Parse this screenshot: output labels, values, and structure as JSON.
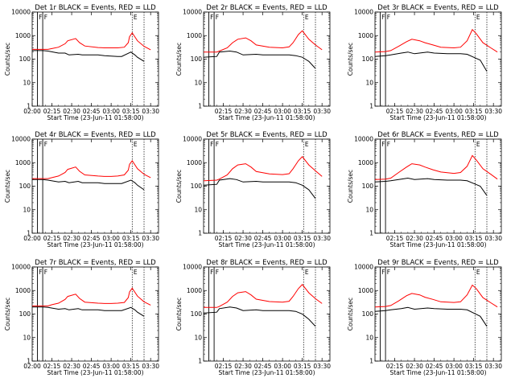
{
  "chart_data": [
    {
      "type": "line",
      "title": "Det 1r BLACK = Events, RED = LLD",
      "xlabel": "Start Time (23-Jun-11 01:58:00)",
      "ylabel": "Counts/sec",
      "yscale": "log",
      "ylim": [
        1,
        10000
      ],
      "x_ticks": [
        "02:00",
        "02:15",
        "02:30",
        "02:45",
        "03:00",
        "03:15",
        "03:30"
      ],
      "y_ticks": [
        "1",
        "10",
        "100",
        "1000",
        "10000"
      ],
      "markers": [
        "F",
        "F",
        "E"
      ],
      "series": [
        {
          "name": "Events",
          "color": "#000000",
          "x": [
            "02:00",
            "02:08",
            "02:12",
            "02:20",
            "02:25",
            "02:28",
            "02:35",
            "02:38",
            "02:50",
            "02:55",
            "03:05",
            "03:08",
            "03:15",
            "03:18",
            "03:20",
            "03:25"
          ],
          "y": [
            230,
            230,
            220,
            180,
            180,
            150,
            160,
            150,
            150,
            140,
            130,
            130,
            200,
            150,
            120,
            80
          ]
        },
        {
          "name": "LLD",
          "color": "#ff0000",
          "x": [
            "02:00",
            "02:08",
            "02:12",
            "02:15",
            "02:20",
            "02:25",
            "02:27",
            "02:33",
            "02:36",
            "02:40",
            "02:50",
            "02:55",
            "03:00",
            "03:05",
            "03:10",
            "03:13",
            "03:14",
            "03:16",
            "03:20",
            "03:25",
            "03:30"
          ],
          "y": [
            260,
            260,
            260,
            280,
            320,
            450,
            600,
            750,
            500,
            360,
            310,
            300,
            300,
            300,
            320,
            500,
            900,
            1300,
            600,
            350,
            250
          ]
        }
      ]
    },
    {
      "type": "line",
      "title": "Det 2r BLACK = Events, RED = LLD",
      "xlabel": "Start Time (23-Jun-11 01:58:00)",
      "ylabel": "Counts/sec",
      "yscale": "log",
      "ylim": [
        1,
        10000
      ],
      "x_ticks": [
        "02:15",
        "02:30",
        "02:45",
        "03:00",
        "03:15",
        "03:30"
      ],
      "y_ticks": [
        "1",
        "10",
        "100",
        "1000",
        "10000"
      ],
      "markers": [
        "F",
        "F",
        "E"
      ],
      "series": [
        {
          "name": "Events",
          "color": "#000000",
          "x": [
            "02:00",
            "02:10",
            "02:12",
            "02:20",
            "02:25",
            "02:30",
            "02:40",
            "02:45",
            "02:55",
            "03:05",
            "03:10",
            "03:15",
            "03:20",
            "03:25"
          ],
          "y": [
            120,
            130,
            200,
            220,
            200,
            150,
            160,
            150,
            150,
            150,
            140,
            120,
            80,
            40
          ]
        },
        {
          "name": "LLD",
          "color": "#ff0000",
          "x": [
            "02:00",
            "02:10",
            "02:12",
            "02:18",
            "02:22",
            "02:26",
            "02:32",
            "02:36",
            "02:40",
            "02:50",
            "03:00",
            "03:05",
            "03:08",
            "03:12",
            "03:15",
            "03:20",
            "03:25",
            "03:30"
          ],
          "y": [
            200,
            200,
            220,
            300,
            500,
            700,
            800,
            600,
            400,
            320,
            300,
            330,
            500,
            1100,
            1600,
            700,
            400,
            250
          ]
        }
      ]
    },
    {
      "type": "line",
      "title": "Det 3r BLACK = Events, RED = LLD",
      "xlabel": "Start Time (23-Jun-11 01:58:00)",
      "ylabel": "Counts/sec",
      "yscale": "log",
      "ylim": [
        1,
        10000
      ],
      "x_ticks": [
        "02:15",
        "02:30",
        "02:45",
        "03:00",
        "03:15",
        "03:30"
      ],
      "y_ticks": [
        "1",
        "10",
        "100",
        "1000",
        "10000"
      ],
      "markers": [
        "F",
        "F",
        "E"
      ],
      "series": [
        {
          "name": "Events",
          "color": "#000000",
          "x": [
            "02:00",
            "02:08",
            "02:12",
            "02:20",
            "02:25",
            "02:30",
            "02:40",
            "02:45",
            "02:55",
            "03:05",
            "03:10",
            "03:15",
            "03:20",
            "03:25"
          ],
          "y": [
            130,
            140,
            150,
            180,
            200,
            170,
            200,
            180,
            170,
            170,
            160,
            120,
            90,
            30
          ]
        },
        {
          "name": "LLD",
          "color": "#ff0000",
          "x": [
            "02:00",
            "02:08",
            "02:12",
            "02:18",
            "02:24",
            "02:28",
            "02:34",
            "02:38",
            "02:44",
            "02:50",
            "03:00",
            "03:05",
            "03:10",
            "03:14",
            "03:17",
            "03:22",
            "03:28",
            "03:33"
          ],
          "y": [
            200,
            210,
            230,
            350,
            550,
            700,
            600,
            500,
            400,
            320,
            300,
            320,
            600,
            1800,
            1200,
            500,
            300,
            200
          ]
        }
      ]
    },
    {
      "type": "line",
      "title": "Det 4r BLACK = Events, RED = LLD",
      "xlabel": "Start Time (23-Jun-11 01:58:00)",
      "ylabel": "Counts/sec",
      "yscale": "log",
      "ylim": [
        1,
        10000
      ],
      "x_ticks": [
        "02:00",
        "02:15",
        "02:30",
        "02:45",
        "03:00",
        "03:15",
        "03:30"
      ],
      "y_ticks": [
        "1",
        "10",
        "100",
        "1000",
        "10000"
      ],
      "markers": [
        "F",
        "F",
        "E"
      ],
      "series": [
        {
          "name": "Events",
          "color": "#000000",
          "x": [
            "02:00",
            "02:08",
            "02:12",
            "02:20",
            "02:25",
            "02:28",
            "02:35",
            "02:38",
            "02:50",
            "02:55",
            "03:05",
            "03:08",
            "03:15",
            "03:18",
            "03:20",
            "03:25"
          ],
          "y": [
            190,
            190,
            180,
            150,
            160,
            140,
            160,
            140,
            140,
            130,
            130,
            130,
            180,
            140,
            110,
            70
          ]
        },
        {
          "name": "LLD",
          "color": "#ff0000",
          "x": [
            "02:00",
            "02:08",
            "02:12",
            "02:15",
            "02:20",
            "02:25",
            "02:27",
            "02:33",
            "02:36",
            "02:40",
            "02:50",
            "02:55",
            "03:00",
            "03:05",
            "03:10",
            "03:13",
            "03:14",
            "03:16",
            "03:20",
            "03:25",
            "03:30"
          ],
          "y": [
            210,
            210,
            210,
            230,
            270,
            380,
            520,
            650,
            430,
            300,
            270,
            260,
            260,
            270,
            300,
            480,
            850,
            1200,
            550,
            320,
            230
          ]
        }
      ]
    },
    {
      "type": "line",
      "title": "Det 5r BLACK = Events, RED = LLD",
      "xlabel": "Start Time (23-Jun-11 01:58:00)",
      "ylabel": "Counts/sec",
      "yscale": "log",
      "ylim": [
        1,
        10000
      ],
      "x_ticks": [
        "02:15",
        "02:30",
        "02:45",
        "03:00",
        "03:15",
        "03:30"
      ],
      "y_ticks": [
        "1",
        "10",
        "100",
        "1000",
        "10000"
      ],
      "markers": [
        "F",
        "F",
        "E"
      ],
      "series": [
        {
          "name": "Events",
          "color": "#000000",
          "x": [
            "02:00",
            "02:10",
            "02:12",
            "02:20",
            "02:25",
            "02:30",
            "02:40",
            "02:45",
            "02:55",
            "03:05",
            "03:10",
            "03:15",
            "03:20",
            "03:25"
          ],
          "y": [
            110,
            120,
            180,
            210,
            190,
            150,
            160,
            150,
            150,
            150,
            140,
            110,
            70,
            30
          ]
        },
        {
          "name": "LLD",
          "color": "#ff0000",
          "x": [
            "02:00",
            "02:10",
            "02:12",
            "02:18",
            "02:22",
            "02:26",
            "02:32",
            "02:36",
            "02:40",
            "02:50",
            "03:00",
            "03:05",
            "03:08",
            "03:12",
            "03:15",
            "03:20",
            "03:25",
            "03:30"
          ],
          "y": [
            170,
            180,
            200,
            300,
            550,
            800,
            900,
            650,
            420,
            330,
            310,
            340,
            550,
            1200,
            1800,
            800,
            450,
            260
          ]
        }
      ]
    },
    {
      "type": "line",
      "title": "Det 6r BLACK = Events, RED = LLD",
      "xlabel": "Start Time (23-Jun-11 01:58:00)",
      "ylabel": "Counts/sec",
      "yscale": "log",
      "ylim": [
        1,
        10000
      ],
      "x_ticks": [
        "02:15",
        "02:30",
        "02:45",
        "03:00",
        "03:15",
        "03:30"
      ],
      "y_ticks": [
        "1",
        "10",
        "100",
        "1000",
        "10000"
      ],
      "markers": [
        "F",
        "F",
        "E"
      ],
      "series": [
        {
          "name": "Events",
          "color": "#000000",
          "x": [
            "02:00",
            "02:08",
            "02:12",
            "02:20",
            "02:25",
            "02:30",
            "02:40",
            "02:45",
            "02:55",
            "03:05",
            "03:10",
            "03:15",
            "03:20",
            "03:25"
          ],
          "y": [
            150,
            160,
            170,
            200,
            220,
            190,
            210,
            190,
            180,
            180,
            170,
            130,
            100,
            40
          ]
        },
        {
          "name": "LLD",
          "color": "#ff0000",
          "x": [
            "02:00",
            "02:08",
            "02:12",
            "02:18",
            "02:24",
            "02:28",
            "02:34",
            "02:38",
            "02:44",
            "02:50",
            "03:00",
            "03:05",
            "03:10",
            "03:14",
            "03:17",
            "03:22",
            "03:28",
            "03:33"
          ],
          "y": [
            190,
            200,
            220,
            380,
            650,
            900,
            800,
            650,
            500,
            400,
            350,
            380,
            700,
            2000,
            1300,
            550,
            320,
            200
          ]
        }
      ]
    },
    {
      "type": "line",
      "title": "Det 7r BLACK = Events, RED = LLD",
      "xlabel": "Start Time (23-Jun-11 01:58:00)",
      "ylabel": "Counts/sec",
      "yscale": "log",
      "ylim": [
        1,
        10000
      ],
      "x_ticks": [
        "02:00",
        "02:15",
        "02:30",
        "02:45",
        "03:00",
        "03:15",
        "03:30"
      ],
      "y_ticks": [
        "1",
        "10",
        "100",
        "1000",
        "10000"
      ],
      "markers": [
        "F",
        "F",
        "E"
      ],
      "series": [
        {
          "name": "Events",
          "color": "#000000",
          "x": [
            "02:00",
            "02:08",
            "02:12",
            "02:20",
            "02:25",
            "02:28",
            "02:35",
            "02:38",
            "02:50",
            "02:55",
            "03:05",
            "03:08",
            "03:15",
            "03:18",
            "03:20",
            "03:25"
          ],
          "y": [
            200,
            200,
            190,
            160,
            170,
            150,
            170,
            150,
            150,
            140,
            140,
            140,
            190,
            150,
            120,
            80
          ]
        },
        {
          "name": "LLD",
          "color": "#ff0000",
          "x": [
            "02:00",
            "02:08",
            "02:12",
            "02:15",
            "02:20",
            "02:25",
            "02:27",
            "02:33",
            "02:36",
            "02:40",
            "02:50",
            "02:55",
            "03:00",
            "03:05",
            "03:10",
            "03:13",
            "03:14",
            "03:16",
            "03:20",
            "03:25",
            "03:30"
          ],
          "y": [
            220,
            220,
            220,
            250,
            290,
            420,
            560,
            700,
            460,
            320,
            290,
            280,
            280,
            290,
            310,
            500,
            880,
            1250,
            580,
            330,
            240
          ]
        }
      ]
    },
    {
      "type": "line",
      "title": "Det 8r BLACK = Events, RED = LLD",
      "xlabel": "Start Time (23-Jun-11 01:58:00)",
      "ylabel": "Counts/sec",
      "yscale": "log",
      "ylim": [
        1,
        10000
      ],
      "x_ticks": [
        "02:15",
        "02:30",
        "02:45",
        "03:00",
        "03:15",
        "03:30"
      ],
      "y_ticks": [
        "1",
        "10",
        "100",
        "1000",
        "10000"
      ],
      "markers": [
        "F",
        "F",
        "E"
      ],
      "series": [
        {
          "name": "Events",
          "color": "#000000",
          "x": [
            "02:00",
            "02:10",
            "02:12",
            "02:20",
            "02:25",
            "02:30",
            "02:40",
            "02:45",
            "02:55",
            "03:05",
            "03:10",
            "03:15",
            "03:20",
            "03:25"
          ],
          "y": [
            110,
            120,
            170,
            200,
            180,
            140,
            150,
            140,
            140,
            140,
            130,
            100,
            60,
            30
          ]
        },
        {
          "name": "LLD",
          "color": "#ff0000",
          "x": [
            "02:00",
            "02:10",
            "02:12",
            "02:18",
            "02:22",
            "02:26",
            "02:32",
            "02:36",
            "02:40",
            "02:50",
            "03:00",
            "03:05",
            "03:08",
            "03:12",
            "03:15",
            "03:20",
            "03:25",
            "03:30"
          ],
          "y": [
            190,
            190,
            210,
            320,
            560,
            800,
            900,
            650,
            430,
            340,
            320,
            350,
            560,
            1200,
            1800,
            800,
            450,
            280
          ]
        }
      ]
    },
    {
      "type": "line",
      "title": "Det 9r BLACK = Events, RED = LLD",
      "xlabel": "Start Time (23-Jun-11 01:58:00)",
      "ylabel": "Counts/sec",
      "yscale": "log",
      "ylim": [
        1,
        10000
      ],
      "x_ticks": [
        "02:15",
        "02:30",
        "02:45",
        "03:00",
        "03:15",
        "03:30"
      ],
      "y_ticks": [
        "1",
        "10",
        "100",
        "1000",
        "10000"
      ],
      "markers": [
        "F",
        "F",
        "E"
      ],
      "series": [
        {
          "name": "Events",
          "color": "#000000",
          "x": [
            "02:00",
            "02:08",
            "02:12",
            "02:20",
            "02:25",
            "02:30",
            "02:40",
            "02:45",
            "02:55",
            "03:05",
            "03:10",
            "03:15",
            "03:20",
            "03:25"
          ],
          "y": [
            130,
            140,
            150,
            170,
            190,
            160,
            180,
            170,
            160,
            160,
            150,
            110,
            80,
            30
          ]
        },
        {
          "name": "LLD",
          "color": "#ff0000",
          "x": [
            "02:00",
            "02:08",
            "02:12",
            "02:18",
            "02:24",
            "02:28",
            "02:34",
            "02:38",
            "02:44",
            "02:50",
            "03:00",
            "03:05",
            "03:10",
            "03:14",
            "03:17",
            "03:22",
            "03:28",
            "03:33"
          ],
          "y": [
            200,
            210,
            230,
            360,
            600,
            750,
            650,
            520,
            420,
            330,
            310,
            330,
            650,
            1700,
            1200,
            500,
            300,
            200
          ]
        }
      ]
    }
  ]
}
